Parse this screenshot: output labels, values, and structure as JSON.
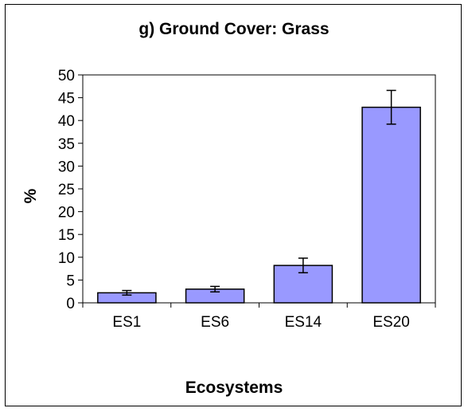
{
  "chart_data": {
    "type": "bar",
    "title": "g) Ground Cover: Grass",
    "xlabel": "Ecosystems",
    "ylabel": "%",
    "categories": [
      "ES1",
      "ES6",
      "ES14",
      "ES20"
    ],
    "values": [
      2.2,
      3.0,
      8.2,
      42.9
    ],
    "error_bars": [
      0.5,
      0.6,
      1.6,
      3.7
    ],
    "ylim": [
      0,
      50
    ],
    "yticks": [
      0,
      5,
      10,
      15,
      20,
      25,
      30,
      35,
      40,
      45,
      50
    ],
    "grid": false,
    "legend": "none",
    "bar_color": "#9999ff",
    "bar_edge_color": "#000000"
  }
}
